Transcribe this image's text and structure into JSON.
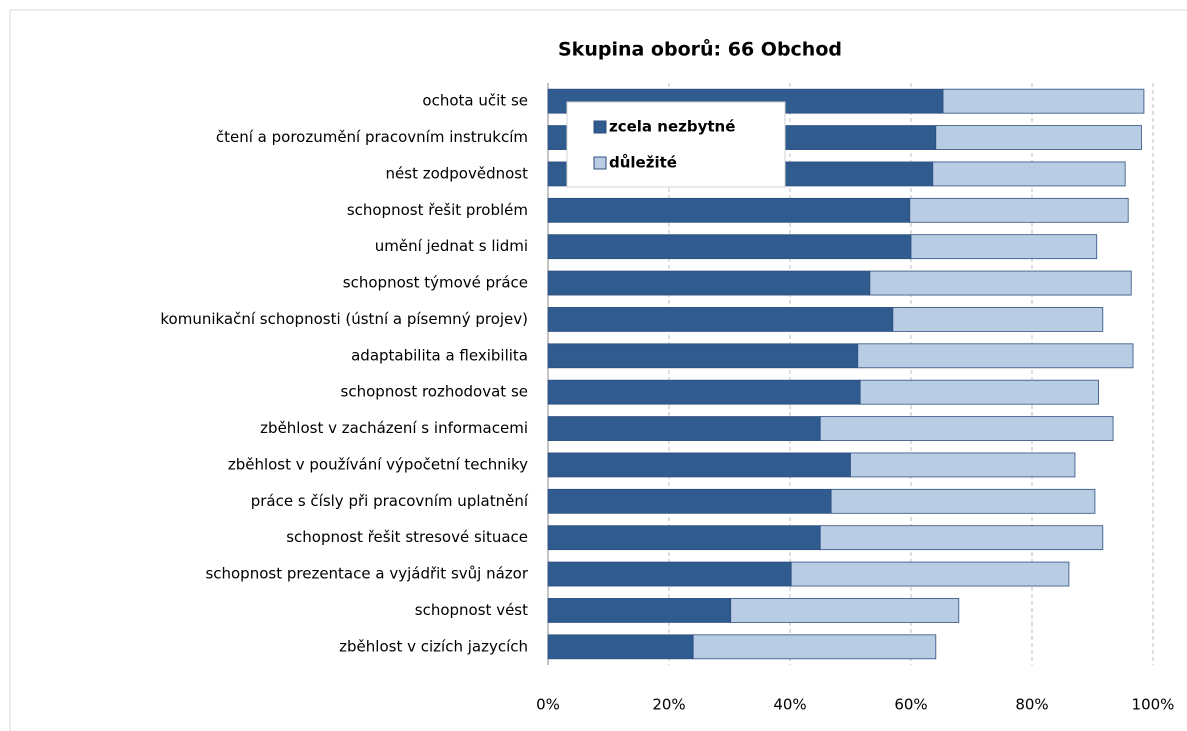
{
  "chart_data": {
    "type": "stacked-barh",
    "title": "Skupina oborů: 66 Obchod",
    "categories": [
      "ochota učit se",
      "čtení a porozumění pracovním instrukcím",
      "nést zodpovědnost",
      "schopnost řešit problém",
      "umění jednat s lidmi",
      "schopnost týmové práce",
      "komunikační schopnosti (ústní a písemný projev)",
      "adaptabilita a flexibilita",
      "schopnost rozhodovat se",
      "zběhlost v zacházení s informacemi",
      "zběhlost v používání výpočetní techniky",
      "práce s čísly při pracovním uplatnění",
      "schopnost řešit stresové situace",
      "schopnost prezentace a vyjádřit svůj názor",
      "schopnost vést",
      "zběhlost v cizích jazycích"
    ],
    "series": [
      {
        "name": "zcela nezbytné",
        "color": "#2f5b8f",
        "values": [
          65.3,
          64.1,
          63.6,
          59.8,
          60,
          53.2,
          57,
          51.2,
          51.6,
          45,
          50,
          46.8,
          45,
          40.2,
          30.2,
          24
        ]
      },
      {
        "name": "důležité",
        "color": "#b8cce4",
        "values": [
          33.2,
          34,
          31.8,
          36.1,
          30.7,
          43.2,
          34.7,
          45.5,
          39.4,
          48.4,
          37.1,
          43.6,
          46.7,
          45.9,
          37.7,
          40.1
        ]
      }
    ],
    "xlim": [
      0,
      100
    ],
    "xticks": [
      {
        "value": 0,
        "label": "0%"
      },
      {
        "value": 20,
        "label": "20%"
      },
      {
        "value": 40,
        "label": "40%"
      },
      {
        "value": 60,
        "label": "60%"
      },
      {
        "value": 80,
        "label": "80%"
      },
      {
        "value": 100,
        "label": "100%"
      }
    ],
    "grid": true,
    "legend": "upper left"
  }
}
